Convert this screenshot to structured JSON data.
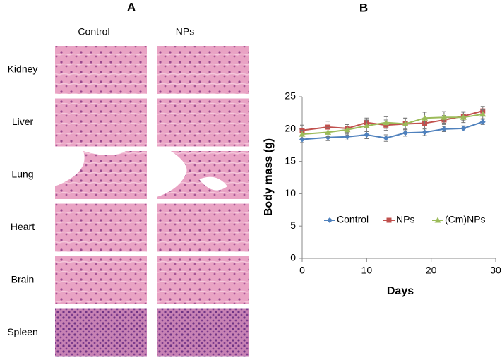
{
  "panel_a": {
    "label": "A",
    "columns": [
      "Control",
      "NPs"
    ],
    "rows": [
      "Kidney",
      "Liver",
      "Lung",
      "Heart",
      "Brain",
      "Spleen"
    ]
  },
  "chart_data": {
    "type": "line",
    "label": "B",
    "xlabel": "Days",
    "ylabel": "Body mass (g)",
    "x": [
      0,
      4,
      7,
      10,
      13,
      16,
      19,
      22,
      25,
      28
    ],
    "series": [
      {
        "name": "Control",
        "color": "#4f81bd",
        "marker": "diamond",
        "values": [
          18.4,
          18.7,
          18.8,
          19.1,
          18.6,
          19.4,
          19.5,
          20.0,
          20.1,
          21.1
        ],
        "errors": [
          0.5,
          0.5,
          0.5,
          0.6,
          0.5,
          0.5,
          0.5,
          0.4,
          0.4,
          0.4
        ]
      },
      {
        "name": "NPs",
        "color": "#c0504d",
        "marker": "square",
        "values": [
          19.8,
          20.3,
          20.1,
          21.0,
          20.6,
          20.8,
          20.9,
          21.4,
          22.0,
          22.8
        ],
        "errors": [
          0.8,
          0.9,
          0.6,
          0.7,
          0.8,
          0.9,
          0.8,
          0.7,
          0.7,
          0.7
        ]
      },
      {
        "name": "(Cm)NPs",
        "color": "#9bbb59",
        "marker": "triangle",
        "values": [
          19.2,
          19.5,
          19.9,
          20.5,
          21.0,
          20.8,
          21.7,
          21.8,
          21.8,
          22.3
        ],
        "errors": [
          0.6,
          0.7,
          0.8,
          0.9,
          0.9,
          0.8,
          0.9,
          0.9,
          0.8,
          0.7
        ]
      }
    ],
    "xlim": [
      0,
      30
    ],
    "xticks": [
      0,
      10,
      20,
      30
    ],
    "ylim": [
      0,
      25
    ],
    "yticks": [
      0,
      5,
      10,
      15,
      20,
      25
    ],
    "grid": false,
    "legend": "bottom"
  }
}
